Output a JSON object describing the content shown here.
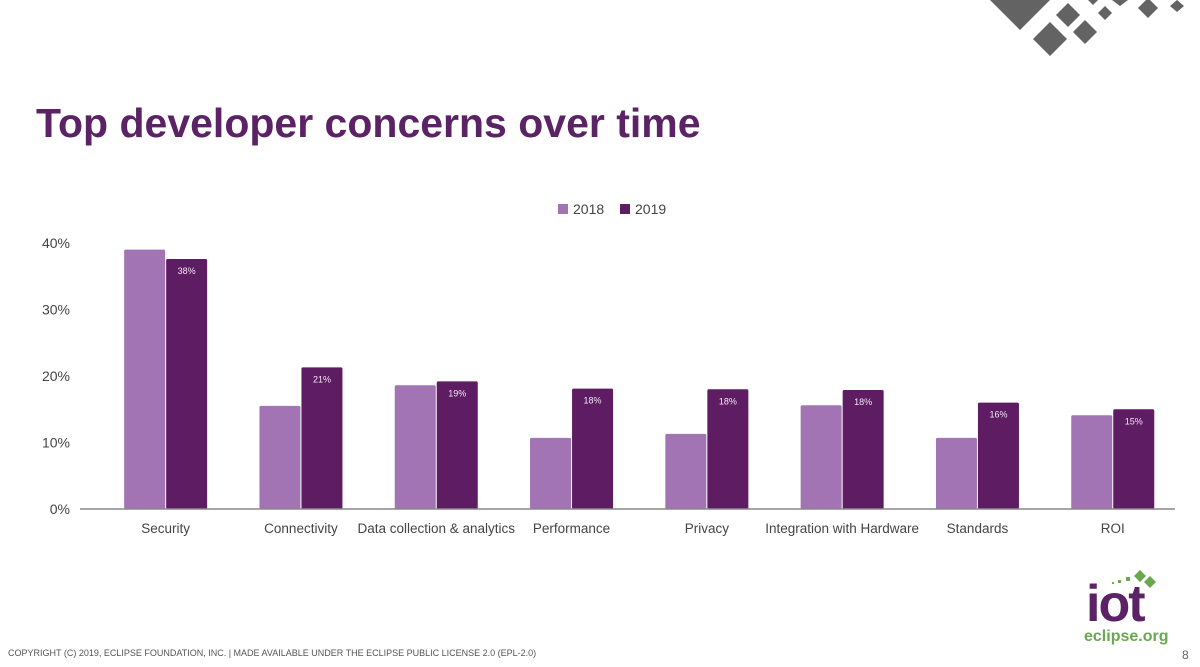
{
  "title": "Top developer concerns over time",
  "footer": "COPYRIGHT (C) 2019, ECLIPSE FOUNDATION, INC. | MADE AVAILABLE UNDER THE ECLIPSE PUBLIC LICENSE 2.0 (EPL-2.0)",
  "page_number": "8",
  "logo": {
    "main": "iot",
    "sub": "eclipse.org"
  },
  "colors": {
    "2018": "#a274b4",
    "2019": "#5e1c63",
    "title": "#5b2266",
    "logo_green": "#6aa84f"
  },
  "chart_data": {
    "type": "bar",
    "title": "Top developer concerns over time",
    "categories": [
      "Security",
      "Connectivity",
      "Data collection & analytics",
      "Performance",
      "Privacy",
      "Integration with Hardware",
      "Standards",
      "ROI"
    ],
    "series": [
      {
        "name": "2018",
        "values": [
          39,
          15.5,
          18.6,
          10.7,
          11.3,
          15.6,
          10.7,
          14.1
        ],
        "labels": [
          "",
          "",
          "",
          "",
          "",
          "",
          "",
          ""
        ]
      },
      {
        "name": "2019",
        "values": [
          37.6,
          21.3,
          19.2,
          18.1,
          18,
          17.9,
          16,
          15
        ],
        "labels": [
          "38%",
          "21%",
          "19%",
          "18%",
          "18%",
          "18%",
          "16%",
          "15%"
        ]
      }
    ],
    "yticks": [
      "0%",
      "10%",
      "20%",
      "30%",
      "40%"
    ],
    "ylim": [
      0,
      40
    ],
    "grid": false,
    "legend": "top-center"
  }
}
